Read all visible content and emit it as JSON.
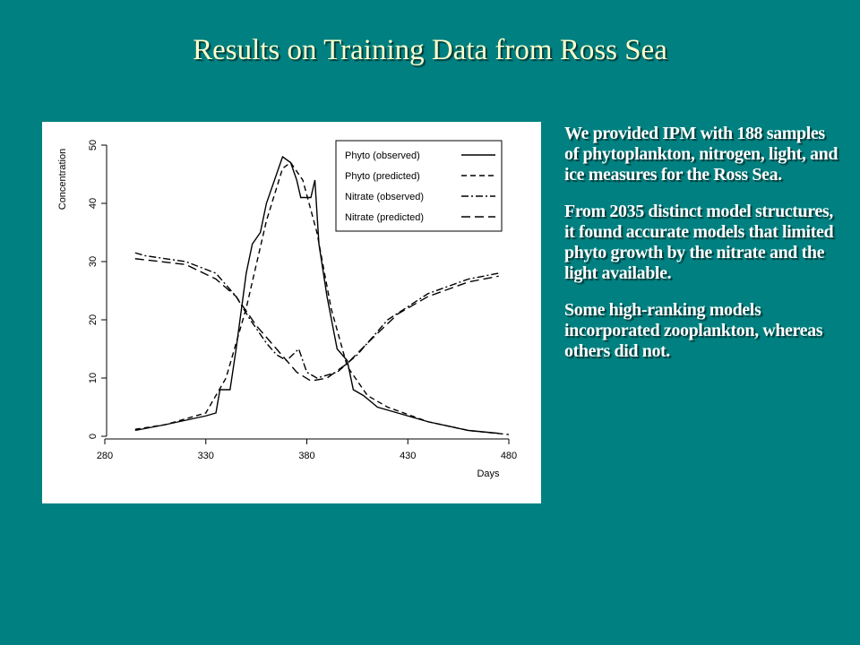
{
  "title": "Results on Training Data from Ross Sea",
  "paragraphs": [
    "We provided IPM with 188 samples of phytoplankton, nitrogen, light, and ice measures for the Ross Sea.",
    "From 2035 distinct model structures, it found accurate models that limited phyto growth by the nitrate and the light available.",
    "Some high-ranking models incorporated zooplankton, whereas others did not."
  ],
  "chart_data": {
    "type": "line",
    "x_label": "Days",
    "y_label": "Concentration",
    "xlim": [
      280,
      480
    ],
    "xticks": [
      280,
      330,
      380,
      430,
      480
    ],
    "ylim": [
      0,
      50
    ],
    "yticks": [
      0,
      10,
      20,
      30,
      40,
      50
    ],
    "legend": "top-right",
    "series": [
      {
        "name": "Phyto (observed)",
        "color": "#000000",
        "dash": "solid",
        "x": [
          295,
          310,
          330,
          335,
          337,
          342,
          345,
          350,
          353,
          357,
          360,
          365,
          368,
          372,
          375,
          377,
          382,
          384,
          386,
          390,
          395,
          400,
          403,
          408,
          415,
          425,
          440,
          460,
          475
        ],
        "values": [
          1,
          2,
          3.5,
          4,
          8,
          8,
          15,
          28,
          33,
          35,
          40,
          45,
          48,
          47,
          44,
          41,
          41,
          44,
          33,
          24,
          15,
          13,
          8,
          7,
          5,
          4,
          2.5,
          1,
          0.5
        ]
      },
      {
        "name": "Phyto (predicted)",
        "color": "#000000",
        "dash": "dashed",
        "x": [
          295,
          310,
          330,
          340,
          350,
          360,
          368,
          372,
          378,
          385,
          392,
          400,
          410,
          420,
          440,
          460,
          480
        ],
        "values": [
          1.2,
          2,
          4,
          10,
          22,
          37,
          46,
          47,
          44,
          35,
          22,
          12,
          7,
          5,
          2.5,
          1,
          0.3
        ]
      },
      {
        "name": "Nitrate (observed)",
        "color": "#000000",
        "dash": "dashdot",
        "x": [
          295,
          300,
          320,
          335,
          345,
          352,
          360,
          365,
          370,
          376,
          380,
          385,
          395,
          405,
          420,
          440,
          460,
          475
        ],
        "values": [
          31.5,
          31,
          30,
          28,
          24,
          20,
          16,
          14,
          13,
          15,
          11,
          10,
          11,
          14,
          20,
          24.5,
          27,
          28
        ]
      },
      {
        "name": "Nitrate (predicted)",
        "color": "#000000",
        "dash": "longdash",
        "x": [
          295,
          320,
          335,
          345,
          355,
          365,
          375,
          382,
          390,
          400,
          410,
          425,
          440,
          460,
          475
        ],
        "values": [
          30.5,
          29.5,
          27,
          24,
          19,
          15,
          11,
          9.5,
          10,
          12.5,
          16,
          21,
          24,
          26.5,
          27.5
        ]
      }
    ]
  }
}
